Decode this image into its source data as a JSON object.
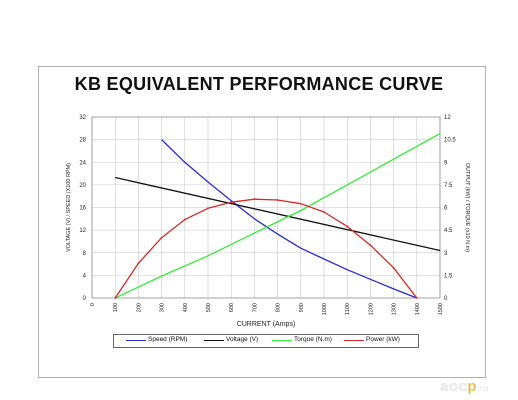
{
  "chart_data": {
    "type": "line",
    "title": "KB EQUIVALENT PERFORMANCE CURVE",
    "xlabel": "CURRENT (Amps)",
    "ylabel_left": "VOLTAGE (V) / SPEED (X100 RPM)",
    "ylabel_right": "OUTPUT (kW) / TORQUE (x10 N.m)",
    "xlim": [
      0,
      1500
    ],
    "ylim_left": [
      0,
      32
    ],
    "ylim_right": [
      0,
      12
    ],
    "x_ticks": [
      "0",
      "100",
      "200",
      "300",
      "400",
      "500",
      "600",
      "700",
      "800",
      "900",
      "1000",
      "1100",
      "1200",
      "1300",
      "1400",
      "1500"
    ],
    "y_left_ticks": [
      "0",
      "4",
      "8",
      "12",
      "16",
      "20",
      "24",
      "28",
      "32"
    ],
    "y_right_ticks": [
      "0",
      "1.5",
      "3",
      "4.5",
      "6",
      "7.5",
      "9",
      "10.5",
      "12"
    ],
    "grid": true,
    "legend_position": "bottom",
    "series": [
      {
        "name": "Speed (RPM)",
        "axis": "left",
        "color": "#2b2bcf",
        "x": [
          300,
          400,
          500,
          600,
          700,
          800,
          900,
          1000,
          1100,
          1200,
          1300,
          1400
        ],
        "y": [
          28,
          24,
          20.5,
          17.2,
          14,
          11.3,
          8.8,
          6.9,
          5,
          3.3,
          1.6,
          0
        ]
      },
      {
        "name": "Voltage (V)",
        "axis": "left",
        "color": "#111111",
        "x": [
          100,
          1500
        ],
        "y": [
          21.3,
          8.4
        ]
      },
      {
        "name": "Torque (N.m)",
        "axis": "right",
        "color": "#33ee33",
        "x": [
          100,
          300,
          500,
          700,
          900,
          1100,
          1300,
          1500
        ],
        "y": [
          0,
          1.45,
          2.8,
          4.3,
          5.8,
          7.5,
          9.2,
          10.9
        ]
      },
      {
        "name": "Power (kW)",
        "axis": "right",
        "color": "#d42a2a",
        "x": [
          100,
          200,
          300,
          400,
          500,
          600,
          700,
          800,
          900,
          1000,
          1100,
          1200,
          1300,
          1400
        ],
        "y": [
          0,
          2.3,
          4.0,
          5.2,
          5.95,
          6.35,
          6.55,
          6.5,
          6.25,
          5.7,
          4.75,
          3.5,
          2.0,
          0
        ]
      }
    ]
  },
  "watermark": {
    "brand": "aoc",
    "dot": "p",
    "suffix": ".ru"
  }
}
